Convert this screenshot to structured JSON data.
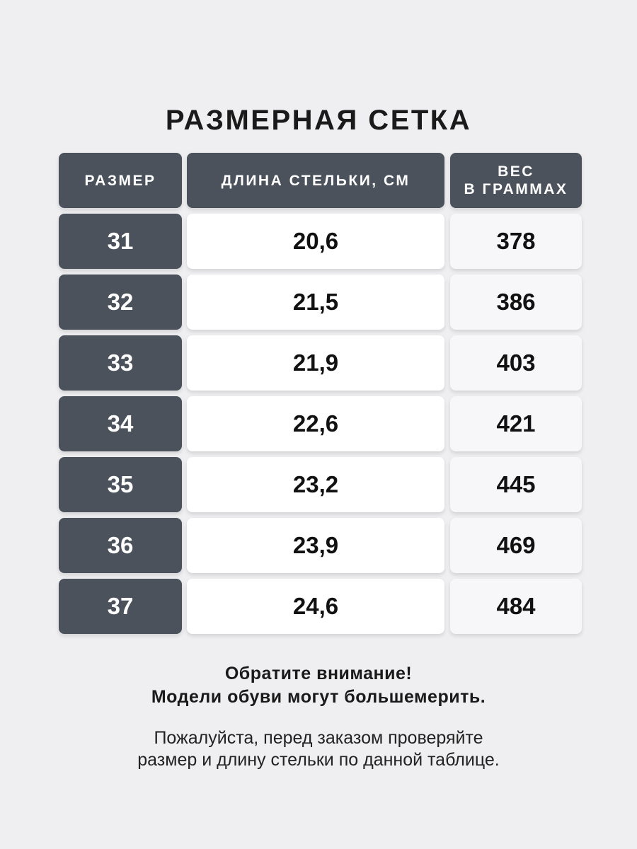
{
  "title": "РАЗМЕРНАЯ СЕТКА",
  "headers": {
    "size": "РАЗМЕР",
    "length": "ДЛИНА СТЕЛЬКИ, СМ",
    "weight_line1": "ВЕС",
    "weight_line2": "В ГРАММАХ"
  },
  "rows": [
    {
      "size": "31",
      "length": "20,6",
      "weight": "378"
    },
    {
      "size": "32",
      "length": "21,5",
      "weight": "386"
    },
    {
      "size": "33",
      "length": "21,9",
      "weight": "403"
    },
    {
      "size": "34",
      "length": "22,6",
      "weight": "421"
    },
    {
      "size": "35",
      "length": "23,2",
      "weight": "445"
    },
    {
      "size": "36",
      "length": "23,9",
      "weight": "469"
    },
    {
      "size": "37",
      "length": "24,6",
      "weight": "484"
    }
  ],
  "notice": {
    "line1": "Обратите внимание!",
    "line2": "Модели обуви могут большемерить.",
    "line3": "Пожалуйста, перед заказом проверяйте",
    "line4": "размер и длину стельки по данной таблице."
  },
  "colors": {
    "header_bg": "#4b525b",
    "background": "#efeff1"
  }
}
